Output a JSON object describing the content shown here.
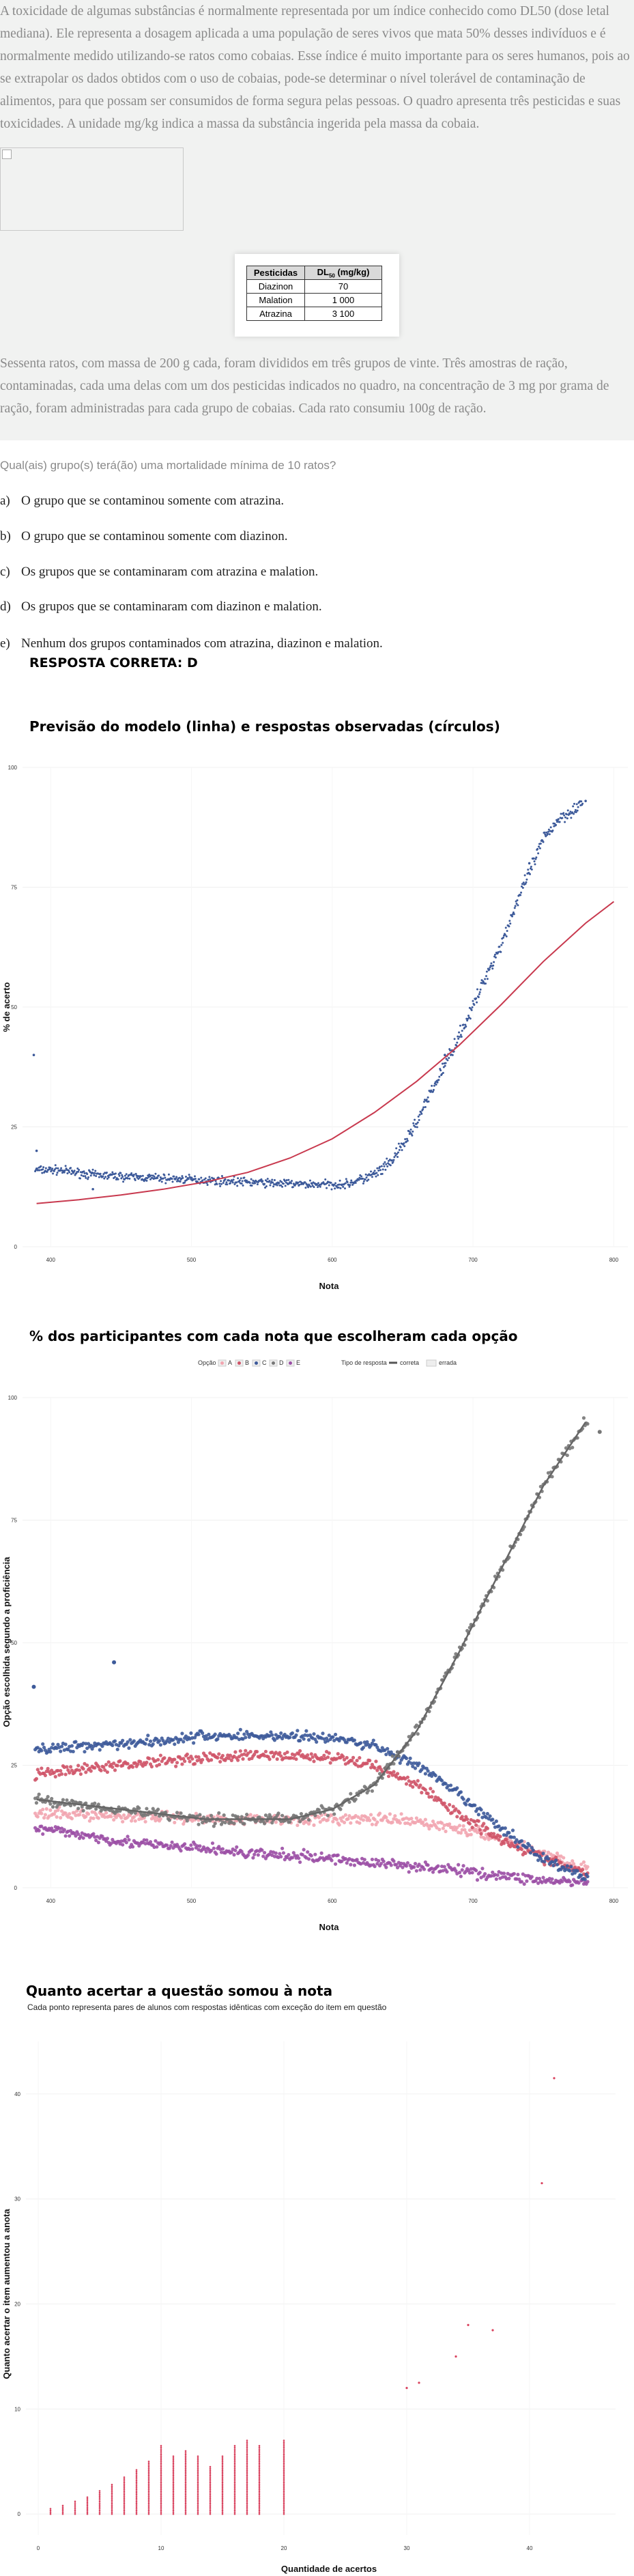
{
  "question": {
    "para1": "A toxicidade de algumas substâncias é normalmente representada por um índice conhecido como DL50 (dose letal mediana). Ele representa a dosagem aplicada a uma população de seres vivos que mata 50% desses indivíduos e é normalmente medido utilizando-se ratos como cobaias. Esse índice é muito importante para os seres humanos, pois ao se extrapolar os dados obtidos com o uso de cobaias, pode-se determinar o nível tolerável de contaminação de alimentos, para que possam ser consumidos de forma segura pelas pessoas. O quadro apresenta três pesticidas e suas toxicidades. A unidade mg/kg indica a massa da substância ingerida pela massa da cobaia.",
    "para2": "Sessenta ratos, com massa de 200 g cada, foram divididos em três grupos de vinte. Três amostras de ração, contaminadas, cada uma delas com um dos pesticidas indicados no quadro, na concentração de 3 mg por grama de ração, foram administradas para cada grupo de cobaias. Cada rato consumiu 100g de ração.",
    "prompt": "Qual(ais) grupo(s) terá(ão) uma mortalidade mínima de 10 ratos?",
    "table": {
      "col1": "Pesticidas",
      "col2_main": "DL",
      "col2_sub": "50",
      "col2_unit": " (mg/kg)",
      "rows": [
        {
          "name": "Diazinon",
          "value": "70"
        },
        {
          "name": "Malation",
          "value": "1 000"
        },
        {
          "name": "Atrazina",
          "value": "3 100"
        }
      ]
    },
    "options": [
      {
        "letter": "a)",
        "text": "O grupo que se contaminou somente com atrazina."
      },
      {
        "letter": "b)",
        "text": "O grupo que se contaminou somente com diazinon."
      },
      {
        "letter": "c)",
        "text": "Os grupos que se contaminaram com atrazina e malation."
      },
      {
        "letter": "d)",
        "text": "Os grupos que se contaminaram com diazinon e malation."
      },
      {
        "letter": "e)",
        "text": "Nenhum dos grupos contaminados com atrazina, diazinon e malation."
      }
    ],
    "answer": "RESPOSTA CORRETA: D"
  },
  "chart_data": [
    {
      "type": "scatter",
      "title": "Previsão do modelo (linha) e respostas observadas (círculos)",
      "xlabel": "Nota",
      "ylabel": "% de acerto",
      "xlim": [
        380,
        810
      ],
      "ylim": [
        0,
        100
      ],
      "xticks": [
        400,
        500,
        600,
        700,
        800
      ],
      "yticks": [
        0,
        25,
        50,
        75,
        100
      ],
      "ytick_labels": [
        "0",
        "25",
        "50",
        "75",
        "100"
      ],
      "colors": {
        "points": "#3d5a9a",
        "line": "#c8394e"
      },
      "model_line": {
        "x": [
          390,
          420,
          450,
          480,
          510,
          540,
          570,
          600,
          630,
          660,
          690,
          720,
          750,
          780,
          800
        ],
        "y": [
          9,
          9.8,
          10.8,
          12,
          13.5,
          15.5,
          18.5,
          22.5,
          28,
          34.5,
          42,
          50.5,
          59.5,
          67.5,
          72
        ]
      },
      "observed": {
        "x": [
          388,
          390,
          392,
          405,
          430,
          460,
          500,
          540,
          580,
          600,
          610,
          620,
          630,
          640,
          650,
          660,
          670,
          680,
          690,
          700,
          710,
          720,
          730,
          740,
          750,
          760,
          780
        ],
        "y": [
          40,
          20,
          17,
          16,
          15,
          14.5,
          14,
          13.5,
          13,
          13,
          13,
          14,
          15,
          17,
          21,
          26,
          32,
          38,
          44,
          50,
          57,
          63,
          71,
          78,
          85,
          89,
          93
        ]
      }
    },
    {
      "type": "scatter",
      "title": "% dos participantes com cada nota que escolheram cada opção",
      "xlabel": "Nota",
      "ylabel": "Opção escolhida segundo a proficiência",
      "xlim": [
        380,
        810
      ],
      "ylim": [
        0,
        100
      ],
      "xticks": [
        400,
        500,
        600,
        700,
        800
      ],
      "yticks": [
        0,
        25,
        50,
        75,
        100
      ],
      "ytick_labels": [
        "0",
        "25",
        "50",
        "75",
        "100"
      ],
      "legend": {
        "option_title": "Opção",
        "options": [
          "A",
          "B",
          "C",
          "D",
          "E"
        ],
        "type_title": "Tipo de resposta",
        "types": [
          "correta",
          "errada"
        ]
      },
      "x": [
        390,
        420,
        450,
        480,
        510,
        540,
        570,
        600,
        630,
        660,
        690,
        720,
        750,
        780
      ],
      "series": [
        {
          "name": "A",
          "color": "#f2a5b0",
          "values": [
            15,
            15,
            14.5,
            14.5,
            14,
            14,
            14,
            14,
            14,
            13.5,
            12,
            10,
            7,
            4
          ]
        },
        {
          "name": "B",
          "color": "#cf5468",
          "values": [
            23,
            24,
            25,
            26,
            26.5,
            27,
            27,
            26.5,
            25,
            21,
            15,
            10,
            6,
            3
          ]
        },
        {
          "name": "C",
          "color": "#3d5a9a",
          "values": [
            28,
            29,
            29.5,
            30,
            31,
            31,
            31,
            30.5,
            29,
            25,
            19,
            12,
            6,
            2
          ]
        },
        {
          "name": "D",
          "color": "#777777",
          "values": [
            18,
            17,
            16,
            15,
            14,
            14,
            14,
            16,
            21,
            32,
            48,
            65,
            82,
            95
          ]
        },
        {
          "name": "E",
          "color": "#9b4fa5",
          "values": [
            12,
            11,
            9.5,
            8.5,
            8,
            7,
            6.5,
            6,
            5,
            4.5,
            3.5,
            2.5,
            1.5,
            1
          ]
        }
      ],
      "outliers": [
        {
          "series": "C",
          "x": 388,
          "y": 41
        },
        {
          "series": "C",
          "x": 445,
          "y": 46
        },
        {
          "series": "D",
          "x": 790,
          "y": 93
        }
      ]
    },
    {
      "type": "scatter",
      "title": "Quanto acertar a questão somou à nota",
      "subtitle": "Cada ponto representa pares de alunos com respostas idênticas com exceção do item em questão",
      "xlabel": "Quantidade de acertos",
      "ylabel": "Quanto acertar o item aumentou a anota",
      "xlim": [
        -1,
        47
      ],
      "ylim": [
        -2,
        45
      ],
      "xticks": [
        0,
        10,
        20,
        30,
        40
      ],
      "yticks": [
        0,
        10,
        20,
        30,
        40
      ],
      "ytick_labels": [
        "0",
        "10",
        "20",
        "30",
        "40"
      ],
      "colors": {
        "points": "#d9425e"
      },
      "x": [
        1,
        2,
        3,
        4,
        5,
        6,
        7,
        8,
        9,
        10,
        11,
        12,
        13,
        14,
        15,
        16,
        17,
        18,
        20,
        30,
        31,
        34,
        35,
        37,
        41,
        42
      ],
      "y_max": [
        0.5,
        0.8,
        1.2,
        1.6,
        2.2,
        2.8,
        3.5,
        4.2,
        5,
        6.5,
        5.5,
        6,
        5.5,
        4.5,
        5.5,
        6.5,
        7,
        6.5,
        7,
        12,
        12.5,
        15,
        18,
        17.5,
        31.5,
        41.5
      ]
    }
  ]
}
